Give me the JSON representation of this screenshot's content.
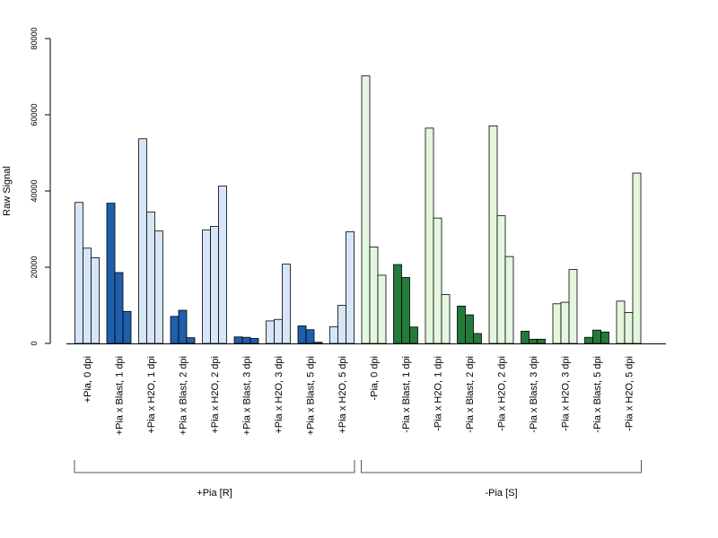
{
  "chart_data": {
    "type": "bar",
    "ylabel": "Raw Signal",
    "xlabel": "",
    "title": "",
    "ylim": [
      0,
      80000
    ],
    "yticks": [
      0,
      20000,
      40000,
      60000,
      80000
    ],
    "grid": false,
    "colors": {
      "light_blue": "#d6e6f6",
      "dark_blue": "#1f5fab",
      "light_green": "#e4f7de",
      "dark_green": "#237a39",
      "outline": "#000000"
    },
    "categories": [
      "+Pia, 0 dpi",
      "+Pia x Blast, 1 dpi",
      "+Pia x H2O, 1 dpi",
      "+Pia x Blast, 2 dpi",
      "+Pia x H2O, 2 dpi",
      "+Pia x Blast, 3 dpi",
      "+Pia x H2O, 3 dpi",
      "+Pia x Blast, 5 dpi",
      "+Pia x H2O, 5 dpi",
      "-Pia, 0 dpi",
      "-Pia x Blast, 1 dpi",
      "-Pia x H2O, 1 dpi",
      "-Pia x Blast, 2 dpi",
      "-Pia x H2O, 2 dpi",
      "-Pia x Blast, 3 dpi",
      "-Pia x H2O, 3 dpi",
      "-Pia x Blast, 5 dpi",
      "-Pia x H2O, 5 dpi"
    ],
    "fill": [
      "light_blue",
      "dark_blue",
      "light_blue",
      "dark_blue",
      "light_blue",
      "dark_blue",
      "light_blue",
      "dark_blue",
      "light_blue",
      "light_green",
      "dark_green",
      "light_green",
      "dark_green",
      "light_green",
      "dark_green",
      "light_green",
      "dark_green",
      "light_green"
    ],
    "values": [
      [
        37000,
        25000,
        22500
      ],
      [
        36800,
        18600,
        8400
      ],
      [
        53700,
        34500,
        29500
      ],
      [
        7100,
        8700,
        1500
      ],
      [
        29800,
        30700,
        41300
      ],
      [
        1700,
        1600,
        1300
      ],
      [
        5900,
        6300,
        20800
      ],
      [
        4600,
        3600,
        300
      ],
      [
        4400,
        10000,
        29300
      ],
      [
        70200,
        25300,
        17900
      ],
      [
        20700,
        17300,
        4300
      ],
      [
        56500,
        32900,
        12800
      ],
      [
        9800,
        7500,
        2600
      ],
      [
        57100,
        33500,
        22800
      ],
      [
        3200,
        1100,
        1100
      ],
      [
        10400,
        10800,
        19400
      ],
      [
        1600,
        3500,
        3000
      ],
      [
        11100,
        8100,
        44700
      ]
    ],
    "groups": [
      {
        "label": "+Pia [R]",
        "start": 0,
        "end": 8
      },
      {
        "label": "-Pia [S]",
        "start": 9,
        "end": 17
      }
    ]
  }
}
